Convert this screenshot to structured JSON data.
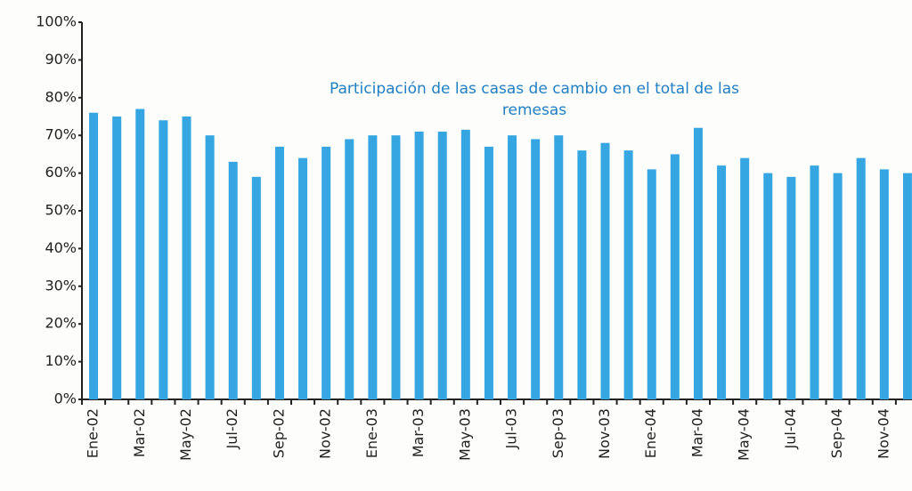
{
  "chart_data": {
    "type": "bar",
    "title": "Participación de las casas de cambio en el total de las remesas",
    "categories": [
      "Ene-02",
      null,
      "Mar-02",
      null,
      "May-02",
      null,
      "Jul-02",
      null,
      "Sep-02",
      null,
      "Nov-02",
      null,
      "Ene-03",
      null,
      "Mar-03",
      null,
      "May-03",
      null,
      "Jul-03",
      null,
      "Sep-03",
      null,
      "Nov-03",
      null,
      "Ene-04",
      null,
      "Mar-04",
      null,
      "May-04",
      null,
      "Jul-04",
      null,
      "Sep-04",
      null,
      "Nov-04",
      null
    ],
    "values": [
      76,
      75,
      77,
      74,
      75,
      70,
      63,
      59,
      67,
      64,
      67,
      69,
      70,
      70,
      71,
      71,
      71.5,
      67,
      70,
      69,
      70,
      66,
      68,
      66,
      61,
      65,
      72,
      62,
      64,
      60,
      59,
      62,
      60,
      64,
      61,
      60
    ],
    "color": "#35a6e2",
    "ylim": [
      0,
      100
    ],
    "yticks": [
      {
        "value": 0,
        "label": "0%"
      },
      {
        "value": 10,
        "label": "10%"
      },
      {
        "value": 20,
        "label": "20%"
      },
      {
        "value": 30,
        "label": "30%"
      },
      {
        "value": 40,
        "label": "40%"
      },
      {
        "value": 50,
        "label": "50%"
      },
      {
        "value": 60,
        "label": "60%"
      },
      {
        "value": 70,
        "label": "70%"
      },
      {
        "value": 80,
        "label": "80%"
      },
      {
        "value": 90,
        "label": "90%"
      },
      {
        "value": 100,
        "label": "100%"
      }
    ],
    "grid": false
  }
}
